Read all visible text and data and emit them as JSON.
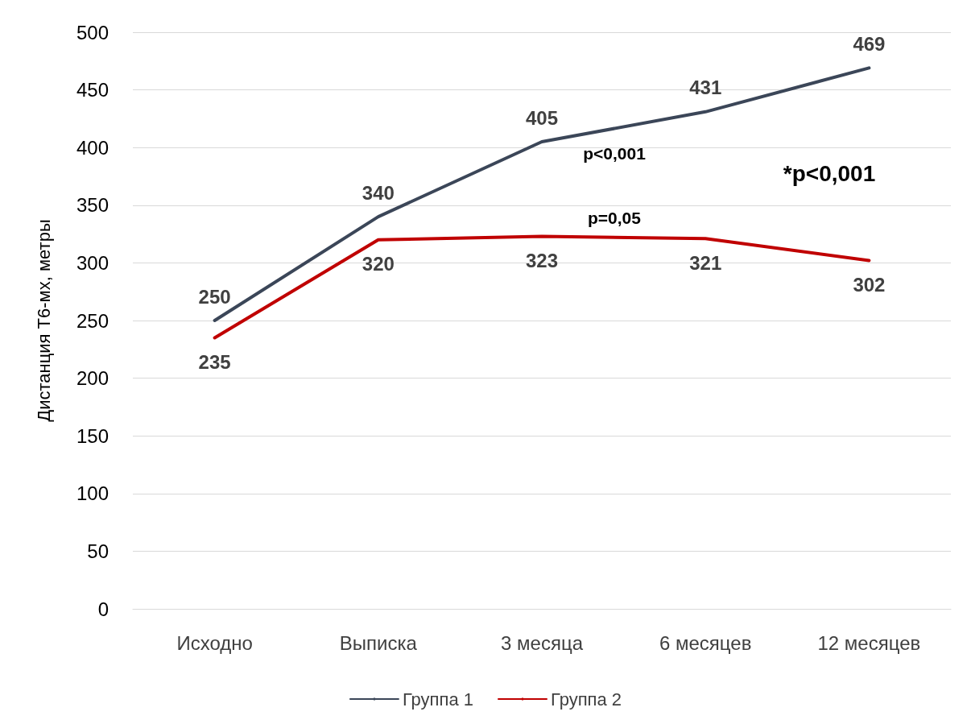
{
  "chart_data": {
    "type": "line",
    "ylabel": "Дистанция Т6-мх, метры",
    "categories": [
      "Исходно",
      "Выписка",
      "3 месяца",
      "6 месяцев",
      "12 месяцев"
    ],
    "series": [
      {
        "name": "Группа 1",
        "color": "#3b4658",
        "values": [
          250,
          340,
          405,
          431,
          469
        ]
      },
      {
        "name": "Группа 2",
        "color": "#c00000",
        "values": [
          235,
          320,
          323,
          321,
          302
        ]
      }
    ],
    "ylim": [
      0,
      500
    ],
    "yticks": [
      0,
      50,
      100,
      150,
      200,
      250,
      300,
      350,
      400,
      450,
      500
    ],
    "grid": "y",
    "legend": "bottom",
    "marker": "none",
    "line_style": "solid",
    "data_labels": true,
    "annotations": [
      "p<0,001",
      "p=0,05",
      "*p<0,001"
    ]
  }
}
